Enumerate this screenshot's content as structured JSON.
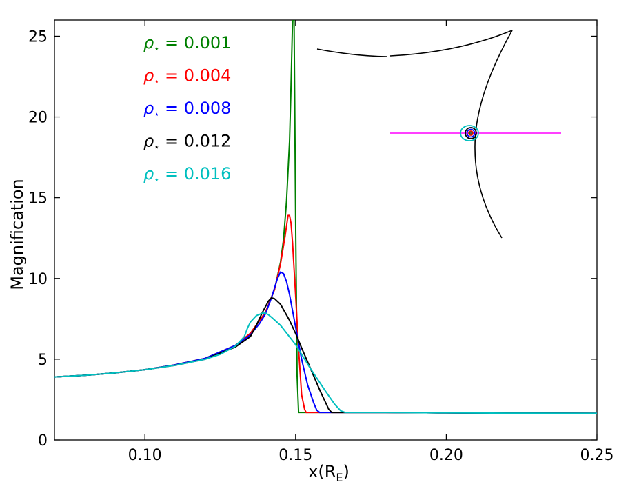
{
  "chart_data": {
    "type": "line",
    "title": "",
    "xlabel": "x(R",
    "xlabel_sub": "E",
    "xlabel_close": ")",
    "ylabel": "Magnification",
    "xlim": [
      0.07,
      0.25
    ],
    "ylim": [
      0,
      26
    ],
    "xticks": [
      0.1,
      0.15,
      0.2,
      0.25
    ],
    "xtick_labels": [
      "0.10",
      "0.15",
      "0.20",
      "0.25"
    ],
    "yticks": [
      0,
      5,
      10,
      15,
      20,
      25
    ],
    "ytick_labels": [
      "0",
      "5",
      "10",
      "15",
      "20",
      "25"
    ],
    "grid": false,
    "legend_position": "top-left",
    "series": [
      {
        "name": "ρ⋆ = 0.001",
        "legend_symbol": "ρ",
        "legend_sub": "⋆",
        "legend_value": " = 0.001",
        "color": "#008000",
        "x": [
          0.07,
          0.08,
          0.09,
          0.1,
          0.11,
          0.12,
          0.13,
          0.135,
          0.14,
          0.143,
          0.145,
          0.146,
          0.147,
          0.148,
          0.1485,
          0.149,
          0.1495,
          0.15,
          0.1505,
          0.151,
          0.16,
          0.18,
          0.2,
          0.22,
          0.25
        ],
        "y": [
          3.9,
          4.0,
          4.15,
          4.35,
          4.65,
          5.05,
          5.85,
          6.6,
          7.9,
          9.3,
          11.0,
          12.4,
          14.8,
          18.5,
          22.0,
          26.0,
          26.0,
          14.0,
          4.0,
          1.7,
          1.7,
          1.7,
          1.68,
          1.66,
          1.65
        ]
      },
      {
        "name": "ρ⋆ = 0.004",
        "legend_symbol": "ρ",
        "legend_sub": "⋆",
        "legend_value": " = 0.004",
        "color": "#ff0000",
        "x": [
          0.07,
          0.08,
          0.09,
          0.1,
          0.11,
          0.12,
          0.13,
          0.135,
          0.14,
          0.143,
          0.145,
          0.1465,
          0.1475,
          0.148,
          0.1485,
          0.149,
          0.15,
          0.151,
          0.152,
          0.153,
          0.1535,
          0.16,
          0.18,
          0.2,
          0.22,
          0.25
        ],
        "y": [
          3.9,
          4.0,
          4.15,
          4.35,
          4.65,
          5.05,
          5.85,
          6.6,
          7.9,
          9.3,
          10.9,
          12.6,
          13.9,
          13.9,
          13.4,
          12.2,
          9.0,
          5.6,
          2.8,
          1.9,
          1.7,
          1.7,
          1.7,
          1.68,
          1.66,
          1.65
        ]
      },
      {
        "name": "ρ⋆ = 0.008",
        "legend_symbol": "ρ",
        "legend_sub": "⋆",
        "legend_value": " = 0.008",
        "color": "#0000ff",
        "x": [
          0.07,
          0.08,
          0.09,
          0.1,
          0.11,
          0.12,
          0.13,
          0.135,
          0.138,
          0.14,
          0.142,
          0.144,
          0.145,
          0.146,
          0.147,
          0.148,
          0.15,
          0.152,
          0.154,
          0.156,
          0.157,
          0.158,
          0.16,
          0.18,
          0.2,
          0.22,
          0.25
        ],
        "y": [
          3.9,
          4.0,
          4.15,
          4.35,
          4.65,
          5.05,
          5.85,
          6.5,
          7.2,
          7.8,
          8.8,
          10.0,
          10.4,
          10.3,
          9.8,
          9.0,
          7.0,
          5.0,
          3.4,
          2.3,
          1.85,
          1.7,
          1.7,
          1.7,
          1.68,
          1.66,
          1.65
        ]
      },
      {
        "name": "ρ⋆ = 0.012",
        "legend_symbol": "ρ",
        "legend_sub": "⋆",
        "legend_value": " = 0.012",
        "color": "#000000",
        "x": [
          0.07,
          0.08,
          0.09,
          0.1,
          0.11,
          0.12,
          0.13,
          0.135,
          0.137,
          0.139,
          0.141,
          0.142,
          0.143,
          0.145,
          0.148,
          0.15,
          0.152,
          0.155,
          0.158,
          0.16,
          0.161,
          0.162,
          0.165,
          0.18,
          0.2,
          0.22,
          0.25
        ],
        "y": [
          3.9,
          4.0,
          4.15,
          4.35,
          4.62,
          5.0,
          5.75,
          6.4,
          7.1,
          7.9,
          8.6,
          8.8,
          8.75,
          8.4,
          7.4,
          6.6,
          5.7,
          4.4,
          3.1,
          2.3,
          1.9,
          1.7,
          1.7,
          1.7,
          1.68,
          1.66,
          1.65
        ]
      },
      {
        "name": "ρ⋆ = 0.016",
        "legend_symbol": "ρ",
        "legend_sub": "⋆",
        "legend_value": " = 0.016",
        "color": "#00bfbf",
        "x": [
          0.07,
          0.08,
          0.09,
          0.1,
          0.11,
          0.12,
          0.125,
          0.13,
          0.133,
          0.134,
          0.135,
          0.137,
          0.139,
          0.14,
          0.141,
          0.142,
          0.145,
          0.15,
          0.155,
          0.16,
          0.163,
          0.165,
          0.1665,
          0.18,
          0.2,
          0.22,
          0.25
        ],
        "y": [
          3.9,
          4.0,
          4.15,
          4.35,
          4.62,
          5.0,
          5.3,
          5.8,
          6.4,
          6.9,
          7.3,
          7.7,
          7.85,
          7.85,
          7.75,
          7.6,
          7.1,
          5.9,
          4.4,
          3.0,
          2.2,
          1.8,
          1.7,
          1.7,
          1.68,
          1.66,
          1.65
        ]
      }
    ],
    "inset": {
      "caustic_color": "#000000",
      "trajectory_color": "#ff00ff"
    }
  }
}
